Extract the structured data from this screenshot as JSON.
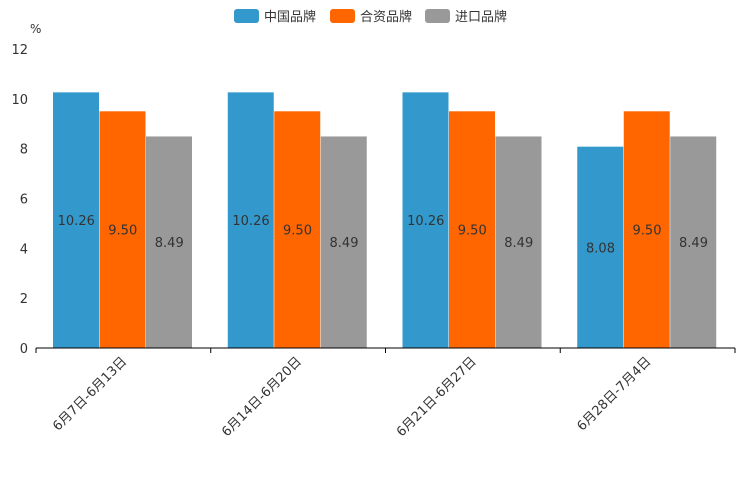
{
  "chart_data": {
    "type": "bar",
    "unit": "%",
    "categories": [
      "6月7日-6月13日",
      "6月14日-6月20日",
      "6月21日-6月27日",
      "6月28日-7月4日"
    ],
    "series": [
      {
        "name": "中国品牌",
        "color": "#3399cc",
        "values": [
          10.26,
          10.26,
          10.26,
          8.08
        ],
        "labels": [
          "10.26",
          "10.26",
          "10.26",
          "8.08"
        ]
      },
      {
        "name": "合资品牌",
        "color": "#ff6600",
        "values": [
          9.5,
          9.5,
          9.5,
          9.5
        ],
        "labels": [
          "9.50",
          "9.50",
          "9.50",
          "9.50"
        ]
      },
      {
        "name": "进口品牌",
        "color": "#999999",
        "values": [
          8.49,
          8.49,
          8.49,
          8.49
        ],
        "labels": [
          "8.49",
          "8.49",
          "8.49",
          "8.49"
        ]
      }
    ],
    "ylim": [
      0,
      12
    ],
    "yticks": [
      "0",
      "2",
      "4",
      "6",
      "8",
      "10",
      "12"
    ],
    "legend_position": "top-center",
    "grid": false
  }
}
